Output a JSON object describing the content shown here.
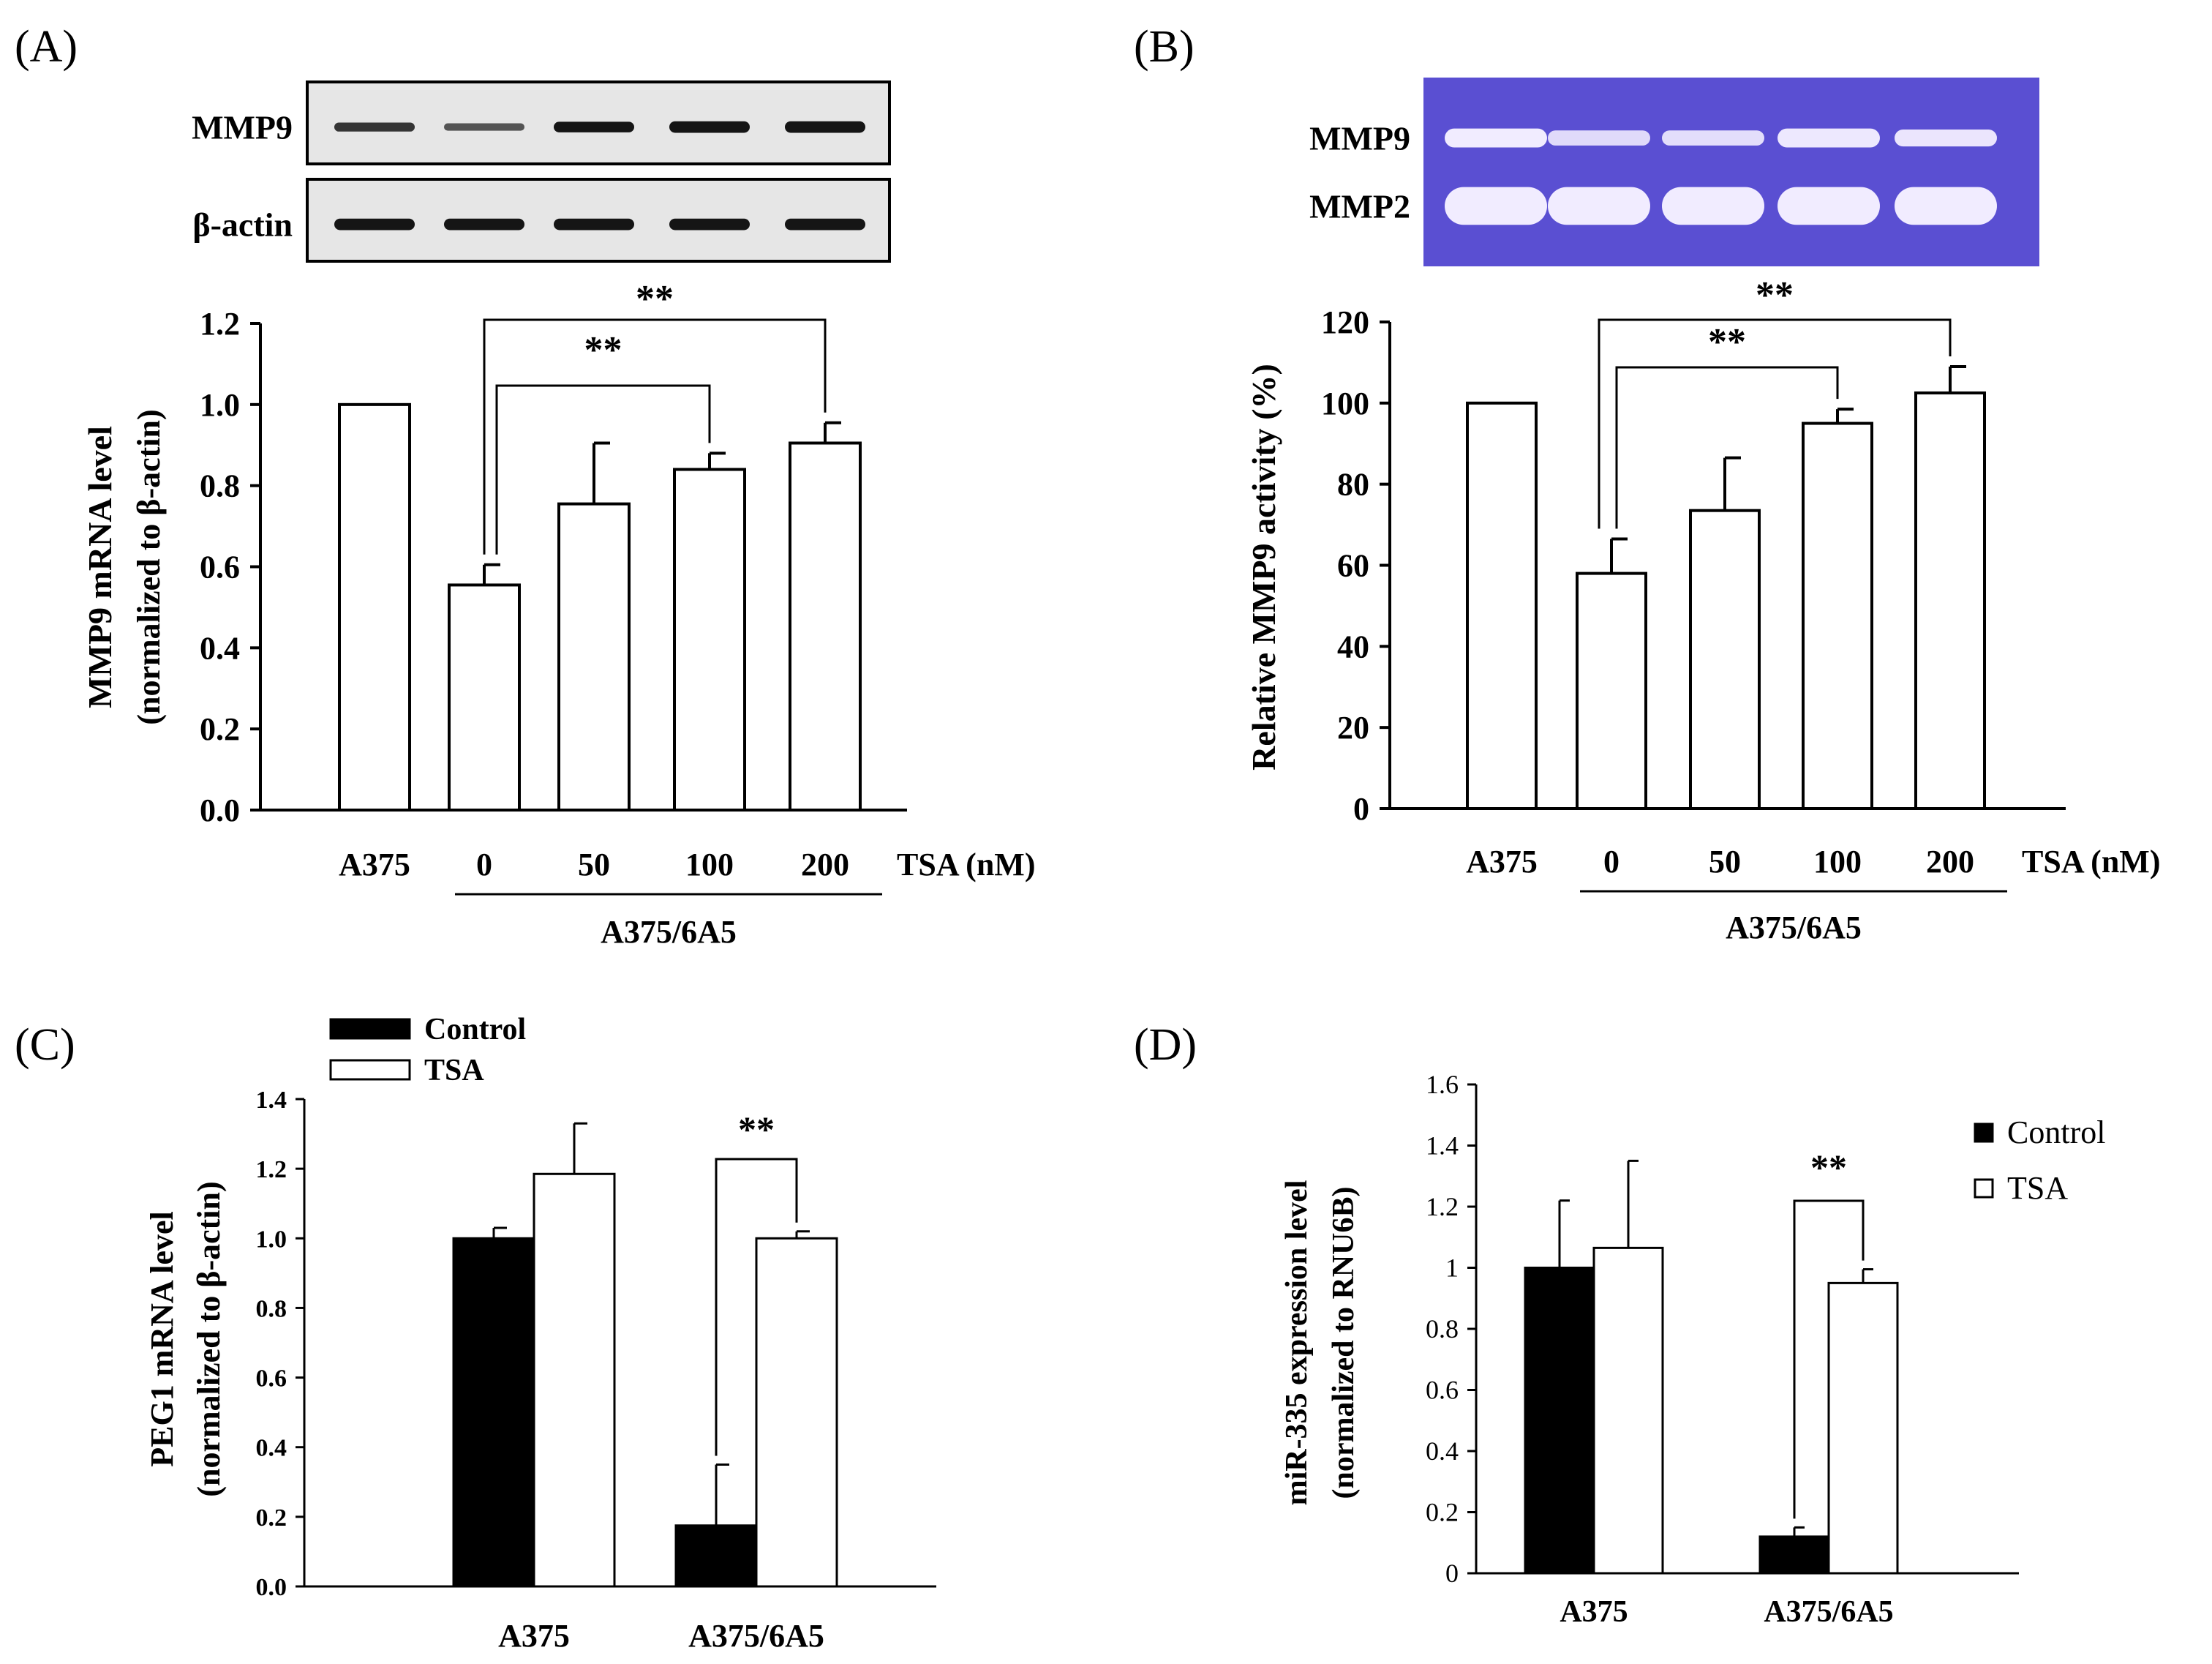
{
  "figure": {
    "panel_labels": [
      "(A)",
      "(B)",
      "(C)",
      "(D)"
    ]
  },
  "colors": {
    "ink": "#000000",
    "bar_open": "#ffffff",
    "bar_filled": "#000000",
    "gel_blot_bg": "#e6e6e6",
    "blot_band": "#151515",
    "zymogram_bg": "#5a4fd2",
    "zymogram_band": "#f1ecff"
  },
  "chart_data": [
    {
      "panel": "(A)",
      "type": "bar",
      "title": "",
      "ylabel_line1": "MMP9 mRNA level",
      "ylabel_line2": "(normalized to β-actin)",
      "ylim": [
        0,
        1.2
      ],
      "yticks": [
        "0.0",
        "0.2",
        "0.4",
        "0.6",
        "0.8",
        "1.0",
        "1.2"
      ],
      "ytick_values": [
        0,
        0.2,
        0.4,
        0.6,
        0.8,
        1.0,
        1.2
      ],
      "categories": [
        "A375",
        "0",
        "50",
        "100",
        "200"
      ],
      "x_suffix": "TSA (nM)",
      "group_label": "A375/6A5",
      "group_span": [
        1,
        4
      ],
      "values": [
        1.0,
        0.555,
        0.755,
        0.84,
        0.905
      ],
      "errors": [
        0,
        0.05,
        0.15,
        0.04,
        0.05
      ],
      "significance": [
        {
          "from": 1,
          "to": 3,
          "label": "**"
        },
        {
          "from": 1,
          "to": 4,
          "label": "**"
        }
      ],
      "blot": {
        "style": "western",
        "rows": [
          {
            "label": "MMP9",
            "intensity": [
              0.85,
              0.7,
              1.0,
              1.0,
              1.0
            ],
            "band_height": [
              0.11,
              0.09,
              0.13,
              0.14,
              0.14
            ]
          },
          {
            "label": "β-actin",
            "intensity": [
              1.0,
              1.0,
              1.0,
              1.0,
              1.0
            ],
            "band_height": [
              0.14,
              0.14,
              0.14,
              0.14,
              0.14
            ]
          }
        ]
      }
    },
    {
      "panel": "(B)",
      "type": "bar",
      "title": "",
      "ylabel_line1": "Relative MMP9 activity (%)",
      "ylabel_line2": "",
      "ylim": [
        0,
        120
      ],
      "yticks": [
        "0",
        "20",
        "40",
        "60",
        "80",
        "100",
        "120"
      ],
      "ytick_values": [
        0,
        20,
        40,
        60,
        80,
        100,
        120
      ],
      "categories": [
        "A375",
        "0",
        "50",
        "100",
        "200"
      ],
      "x_suffix": "TSA (nM)",
      "group_label": "A375/6A5",
      "group_span": [
        1,
        4
      ],
      "values": [
        100,
        58,
        73.5,
        95,
        102.5
      ],
      "errors": [
        0,
        8.5,
        13,
        3.5,
        6.5
      ],
      "significance": [
        {
          "from": 1,
          "to": 3,
          "label": "**"
        },
        {
          "from": 1,
          "to": 4,
          "label": "**"
        }
      ],
      "blot": {
        "style": "zymogram",
        "rows": [
          {
            "label": "MMP9",
            "intensity": [
              1.0,
              0.75,
              0.8,
              0.95,
              0.9
            ],
            "band_height": [
              0.1,
              0.08,
              0.08,
              0.1,
              0.09
            ]
          },
          {
            "label": "MMP2",
            "intensity": [
              1.0,
              1.0,
              1.0,
              1.0,
              1.0
            ],
            "band_height": [
              0.2,
              0.2,
              0.2,
              0.2,
              0.2
            ]
          }
        ]
      }
    },
    {
      "panel": "(C)",
      "type": "bar",
      "title": "",
      "ylabel_line1": "PEG1 mRNA level",
      "ylabel_line2": "(normalized to β-actin)",
      "ylim": [
        0,
        1.4
      ],
      "yticks": [
        "0.0",
        "0.2",
        "0.4",
        "0.6",
        "0.8",
        "1.0",
        "1.2",
        "1.4"
      ],
      "ytick_values": [
        0,
        0.2,
        0.4,
        0.6,
        0.8,
        1.0,
        1.2,
        1.4
      ],
      "categories": [
        "A375",
        "A375/6A5"
      ],
      "series": [
        {
          "name": "Control",
          "values": [
            1.0,
            0.175
          ],
          "errors": [
            0.03,
            0.175
          ]
        },
        {
          "name": "TSA",
          "values": [
            1.185,
            1.0
          ],
          "errors": [
            0.145,
            0.02
          ]
        }
      ],
      "legend": [
        "Control",
        "TSA"
      ],
      "legend_position": "top-left",
      "significance": [
        {
          "category": 1,
          "label": "**"
        }
      ]
    },
    {
      "panel": "(D)",
      "type": "bar",
      "title": "",
      "ylabel_line1": "miR-335 expression level",
      "ylabel_line2": "(normalized to RNU6B)",
      "ylim": [
        0,
        1.6
      ],
      "yticks": [
        "0",
        "0.2",
        "0.4",
        "0.6",
        "0.8",
        "1",
        "1.2",
        "1.4",
        "1.6"
      ],
      "ytick_values": [
        0,
        0.2,
        0.4,
        0.6,
        0.8,
        1.0,
        1.2,
        1.4,
        1.6
      ],
      "categories": [
        "A375",
        "A375/6A5"
      ],
      "series": [
        {
          "name": "Control",
          "values": [
            1.0,
            0.12
          ],
          "errors": [
            0.22,
            0.03
          ]
        },
        {
          "name": "TSA",
          "values": [
            1.065,
            0.95
          ],
          "errors": [
            0.285,
            0.045
          ]
        }
      ],
      "legend": [
        "Control",
        "TSA"
      ],
      "legend_position": "top-right",
      "significance": [
        {
          "category": 1,
          "label": "**"
        }
      ]
    }
  ]
}
